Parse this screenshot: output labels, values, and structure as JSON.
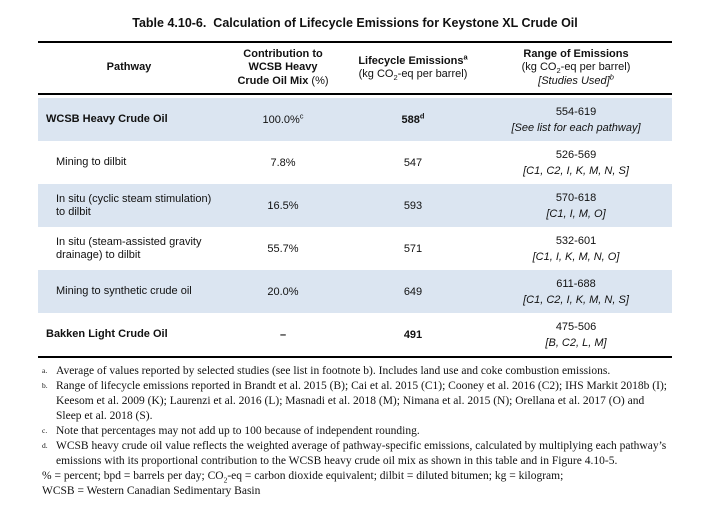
{
  "title": "Table 4.10-6.  Calculation of Lifecycle Emissions for Keystone XL Crude Oil",
  "table": {
    "header": {
      "pathway": "Pathway",
      "contribution": {
        "line1": "Contribution to",
        "line2": "WCSB Heavy",
        "line3": "Crude Oil Mix",
        "line3_suffix": " (%)"
      },
      "emissions": {
        "title": "Lifecycle Emissions",
        "sup": "a",
        "units_pre": "(kg CO",
        "units_sub": "2",
        "units_post": "-eq per barrel)"
      },
      "range": {
        "title": "Range of Emissions",
        "units_pre": "(kg CO",
        "units_sub": "2",
        "units_post": "-eq per barrel)",
        "studies": "[Studies Used]",
        "sup": "b"
      }
    },
    "rows": [
      {
        "pathway": "WCSB Heavy Crude Oil",
        "contribution": "100.0%",
        "contribution_sup": "c",
        "emissions": "588",
        "emissions_sup": "d",
        "range": "554-619",
        "studies": "[See list for each pathway]"
      },
      {
        "pathway": "Mining to dilbit",
        "contribution": "7.8%",
        "emissions": "547",
        "range": "526-569",
        "studies": "[C1, C2, I, K, M, N, S]"
      },
      {
        "pathway": "In situ (cyclic steam stimulation) to dilbit",
        "contribution": "16.5%",
        "emissions": "593",
        "range": "570-618",
        "studies": "[C1, I, M, O]"
      },
      {
        "pathway": "In situ (steam-assisted gravity drainage) to dilbit",
        "contribution": "55.7%",
        "emissions": "571",
        "range": "532-601",
        "studies": "[C1, I, K, M, N, O]"
      },
      {
        "pathway": "Mining to synthetic crude oil",
        "contribution": "20.0%",
        "emissions": "649",
        "range": "611-688",
        "studies": "[C1, C2, I, K, M, N, S]"
      },
      {
        "pathway": "Bakken Light Crude Oil",
        "contribution": "–",
        "emissions": "491",
        "range": "475-506",
        "studies": "[B, C2, L, M]"
      }
    ]
  },
  "footnotes": [
    {
      "marker": "a.",
      "text": "Average of values reported by selected studies (see list in footnote b).  Includes land use and coke combustion emissions."
    },
    {
      "marker": "b.",
      "text": "Range of lifecycle emissions reported in Brandt et al. 2015 (B); Cai et al. 2015 (C1); Cooney et al. 2016 (C2); IHS Markit 2018b (I); Keesom et al. 2009 (K); Laurenzi et al. 2016 (L); Masnadi et al. 2018 (M); Nimana et al. 2015 (N); Orellana et al. 2017 (O) and Sleep et al. 2018 (S)."
    },
    {
      "marker": "c.",
      "text": "Note that percentages may not add up to 100 because of independent rounding."
    },
    {
      "marker": "d.",
      "text": "WCSB heavy crude oil value reflects the weighted average of pathway-specific emissions, calculated by multiplying each pathway’s emissions with its proportional contribution to the WCSB heavy crude oil mix as shown in this table and in Figure 4.10-5."
    }
  ],
  "abbreviations": {
    "line1_pre": "% = percent; bpd = barrels per day; CO",
    "line1_sub": "2",
    "line1_post": "-eq = carbon dioxide equivalent; dilbit = diluted bitumen; kg = kilogram;",
    "line2": "WCSB = Western Canadian Sedimentary Basin"
  },
  "colors": {
    "row_shade": "#dbe5f1",
    "rule": "#000000"
  }
}
